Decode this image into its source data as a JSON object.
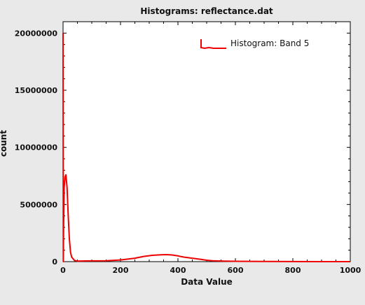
{
  "chart_data": {
    "type": "line",
    "title": "Histograms: reflectance.dat",
    "xlabel": "Data Value",
    "ylabel": "count",
    "xlim": [
      0,
      1000
    ],
    "ylim": [
      0,
      21000000
    ],
    "x_ticks": [
      0,
      200,
      400,
      600,
      800,
      1000
    ],
    "x_tick_labels": [
      "0",
      "200",
      "400",
      "600",
      "800",
      "1000"
    ],
    "y_ticks": [
      0,
      5000000,
      10000000,
      15000000,
      20000000
    ],
    "y_tick_labels": [
      "0",
      "5000000",
      "10000000",
      "15000000",
      "20000000"
    ],
    "grid": false,
    "legend_position": "top-right",
    "series": [
      {
        "name": "Histogram: Band 5",
        "color": "#ee0000",
        "x": [
          0,
          1,
          2,
          4,
          7,
          10,
          14,
          18,
          22,
          26,
          30,
          40,
          50,
          75,
          100,
          150,
          200,
          250,
          280,
          310,
          340,
          360,
          380,
          400,
          420,
          450,
          480,
          500,
          520,
          560,
          600,
          700,
          800,
          900,
          1000
        ],
        "y": [
          20000000,
          0,
          3000000,
          6500000,
          7400000,
          7600000,
          6500000,
          4000000,
          2000000,
          800000,
          400000,
          100000,
          50000,
          60000,
          70000,
          80000,
          150000,
          300000,
          450000,
          550000,
          600000,
          610000,
          580000,
          500000,
          400000,
          300000,
          200000,
          120000,
          80000,
          50000,
          30000,
          10000,
          5000,
          3000,
          2000
        ]
      }
    ]
  }
}
